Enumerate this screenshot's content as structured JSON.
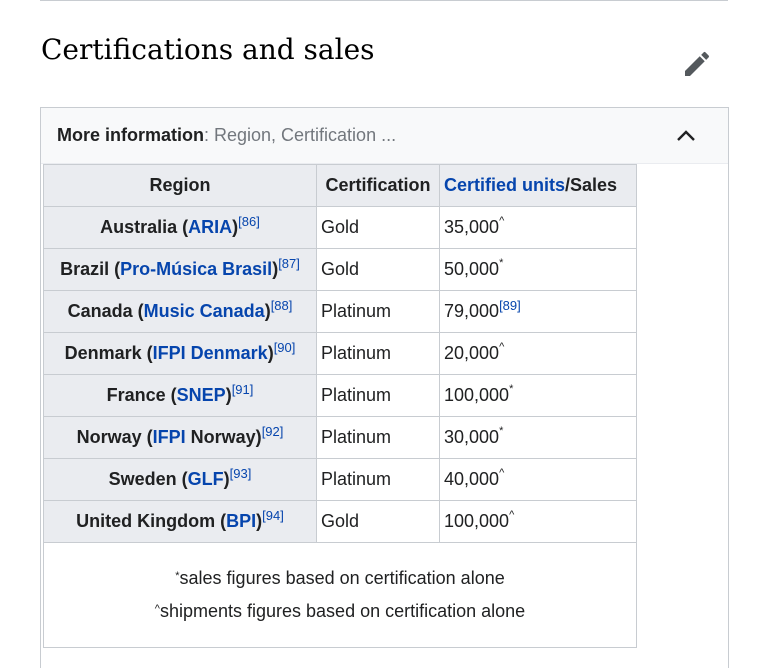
{
  "section": {
    "title": "Certifications and sales",
    "edit_icon": "pencil-icon"
  },
  "collapsible": {
    "label": "More information",
    "summary": ": Region, Certification ...",
    "toggle_icon": "chevron-up-icon"
  },
  "table": {
    "headers": {
      "region": "Region",
      "certification": "Certification",
      "units_link": "Certified units",
      "units_rest": "/Sales"
    },
    "rows": [
      {
        "region": "Australia (",
        "org": "ARIA",
        "close": ")",
        "ref": "[86]",
        "cert": "Gold",
        "units": "35,000",
        "mark": "^"
      },
      {
        "region": "Brazil (",
        "org": "Pro-Música Brasil",
        "close": ")",
        "ref": "[87]",
        "cert": "Gold",
        "units": "50,000",
        "mark": "*"
      },
      {
        "region": "Canada (",
        "org": "Music Canada",
        "close": ")",
        "ref": "[88]",
        "cert": "Platinum",
        "units": "79,000",
        "unit_ref": "[89]"
      },
      {
        "region": "Denmark (",
        "org": "IFPI Denmark",
        "close": ")",
        "ref": "[90]",
        "cert": "Platinum",
        "units": "20,000",
        "mark": "^"
      },
      {
        "region": "France (",
        "org": "SNEP",
        "close": ")",
        "ref": "[91]",
        "cert": "Platinum",
        "units": "100,000",
        "mark": "*"
      },
      {
        "region": "Norway (",
        "org": "IFPI",
        "close": " Norway)",
        "ref": "[92]",
        "cert": "Platinum",
        "units": "30,000",
        "mark": "*"
      },
      {
        "region": "Sweden (",
        "org": "GLF",
        "close": ")",
        "ref": "[93]",
        "cert": "Platinum",
        "units": "40,000",
        "mark": "^"
      },
      {
        "region": "United Kingdom (",
        "org": "BPI",
        "close": ")",
        "ref": "[94]",
        "cert": "Gold",
        "units": "100,000",
        "mark": "^"
      }
    ],
    "footnotes": [
      {
        "mark": "*",
        "text": "sales figures based on certification alone"
      },
      {
        "mark": "^",
        "text": "shipments figures based on certification alone"
      }
    ]
  },
  "colors": {
    "link": "#0645ad",
    "header_bg": "#eaecf0",
    "border": "#c8ccd1"
  }
}
